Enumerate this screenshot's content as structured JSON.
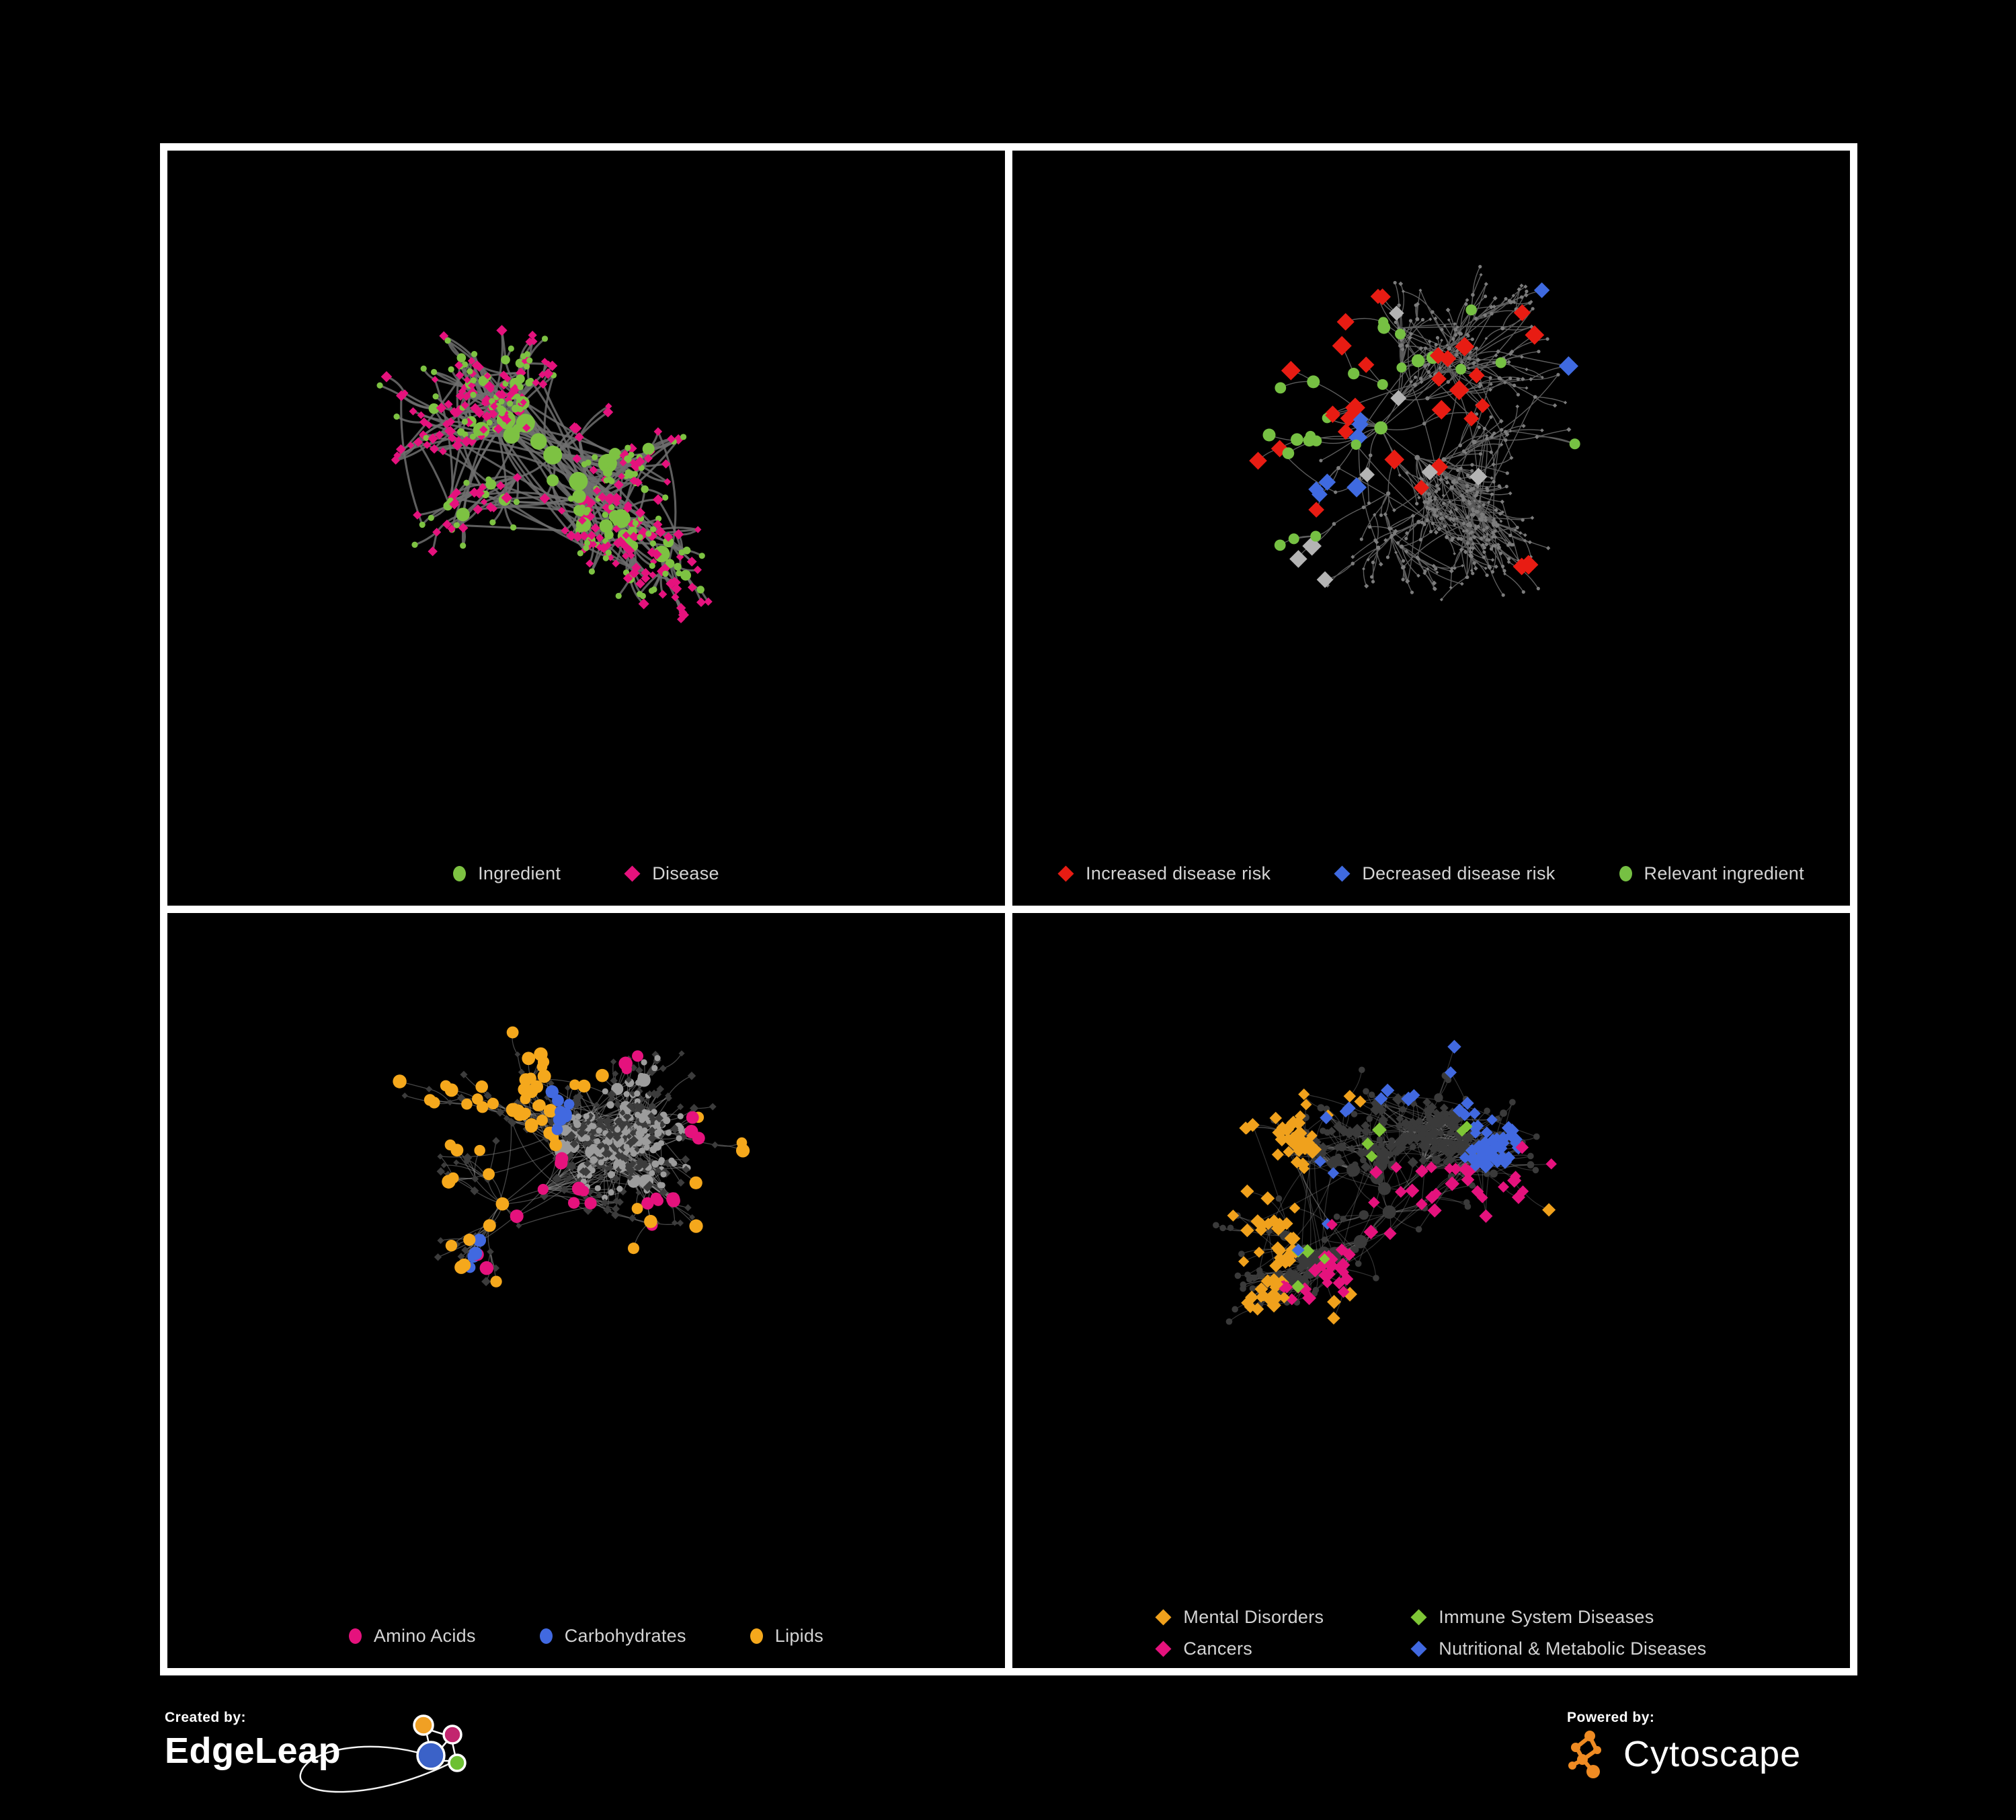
{
  "figure": {
    "background": "#000000",
    "frame_color": "#ffffff",
    "legend_text_color": "#d4d4d4"
  },
  "panels": [
    {
      "id": "ingredient-disease",
      "legend": {
        "columns": 1,
        "items": [
          {
            "label": "Ingredient",
            "color": "#7dc242",
            "shape": "circle"
          },
          {
            "label": "Disease",
            "color": "#e5127d",
            "shape": "diamond"
          }
        ]
      },
      "network": {
        "seed": 101,
        "nodes": 430,
        "root": [
          0.46,
          0.44
        ],
        "step": 33,
        "pref": 3,
        "circleFrac": 0.42,
        "web": 0.28,
        "webDist": 240,
        "edgeColor": "#6f6f6f",
        "edgeWidth": 3.1,
        "edgeOpacity": 0.85,
        "circleColor": "#7dc242",
        "circleR": 4.6,
        "hubGrow": 1.1,
        "circleMax": 14,
        "diamondColor": "#e5127d",
        "diamondS": 6.4,
        "highlights": []
      }
    },
    {
      "id": "disease-risk",
      "legend": {
        "columns": 1,
        "items": [
          {
            "label": "Increased disease risk",
            "color": "#e81c13",
            "shape": "diamond"
          },
          {
            "label": "Decreased disease risk",
            "color": "#3f6ae0",
            "shape": "diamond"
          },
          {
            "label": "Relevant ingredient",
            "color": "#76c043",
            "shape": "circle"
          }
        ]
      },
      "network": {
        "seed": 202,
        "nodes": 560,
        "root": [
          0.44,
          0.4
        ],
        "step": 36,
        "pref": 2,
        "circleFrac": 0.45,
        "web": 0.14,
        "webDist": 210,
        "edgeColor": "#5d5d5d",
        "edgeWidth": 1.4,
        "edgeOpacity": 1,
        "circleColor": "#7c7c7c",
        "circleR": 2.6,
        "hubGrow": 0.12,
        "circleMax": 4,
        "diamondColor": "#7c7c7c",
        "diamondS": 2.8,
        "highlights": [
          {
            "shape": "diamond",
            "color": "#e81c13",
            "count": 26,
            "size": 13,
            "centers": [
              [
                0.42,
                0.3
              ],
              [
                0.35,
                0.38
              ],
              [
                0.52,
                0.33
              ],
              [
                0.47,
                0.44
              ],
              [
                0.56,
                0.25
              ],
              [
                0.33,
                0.27
              ]
            ],
            "spread": 0.09
          },
          {
            "shape": "diamond",
            "color": "#e81c13",
            "count": 4,
            "size": 13,
            "centers": [
              [
                0.7,
                0.76
              ],
              [
                0.75,
                0.83
              ],
              [
                0.62,
                0.28
              ],
              [
                0.3,
                0.52
              ]
            ],
            "spread": 0.02
          },
          {
            "shape": "diamond",
            "color": "#3f6ae0",
            "count": 7,
            "size": 13,
            "centers": [
              [
                0.15,
                0.3
              ],
              [
                0.18,
                0.37
              ],
              [
                0.13,
                0.35
              ]
            ],
            "spread": 0.04
          },
          {
            "shape": "diamond",
            "color": "#3f6ae0",
            "count": 2,
            "size": 13,
            "centers": [
              [
                0.82,
                0.19
              ],
              [
                0.845,
                0.19
              ]
            ],
            "spread": 0.008
          },
          {
            "shape": "diamond",
            "color": "#b4b4b4",
            "count": 8,
            "size": 13,
            "centers": [
              [
                0.11,
                0.28
              ],
              [
                0.3,
                0.34
              ],
              [
                0.5,
                0.4
              ],
              [
                0.55,
                0.46
              ],
              [
                0.25,
                0.6
              ]
            ],
            "spread": 0.05
          },
          {
            "shape": "circle",
            "color": "#76c043",
            "count": 24,
            "size": 8.5,
            "centers": [
              [
                0.27,
                0.3
              ],
              [
                0.4,
                0.35
              ],
              [
                0.5,
                0.3
              ],
              [
                0.22,
                0.43
              ],
              [
                0.58,
                0.35
              ],
              [
                0.13,
                0.56
              ],
              [
                0.47,
                0.25
              ]
            ],
            "spread": 0.11
          },
          {
            "shape": "circle",
            "color": "#76c043",
            "count": 2,
            "size": 8.5,
            "centers": [
              [
                0.88,
                0.33
              ],
              [
                0.1,
                0.67
              ]
            ],
            "spread": 0.01
          }
        ]
      }
    },
    {
      "id": "nutrient-classes",
      "legend": {
        "columns": 1,
        "items": [
          {
            "label": "Amino Acids",
            "color": "#e5127d",
            "shape": "circle"
          },
          {
            "label": "Carbohydrates",
            "color": "#4169e0",
            "shape": "circle"
          },
          {
            "label": "Lipids",
            "color": "#f5a81c",
            "shape": "circle"
          }
        ]
      },
      "network": {
        "seed": 303,
        "nodes": 560,
        "root": [
          0.4,
          0.42
        ],
        "step": 34,
        "pref": 3,
        "circleFrac": 0.46,
        "web": 0.22,
        "webDist": 210,
        "edgeColor": "#9a9a9a",
        "edgeWidth": 1.3,
        "edgeOpacity": 0.45,
        "circleColor": "#9c9c9c",
        "circleR": 4.6,
        "hubGrow": 0.9,
        "circleMax": 13,
        "diamondColor": "#3c3c3c",
        "diamondS": 5.4,
        "highlights": [
          {
            "shape": "circle",
            "color": "#f5a81c",
            "count": 50,
            "size": 9,
            "centers": [
              [
                0.36,
                0.21
              ],
              [
                0.42,
                0.28
              ],
              [
                0.3,
                0.33
              ],
              [
                0.47,
                0.19
              ],
              [
                0.38,
                0.33
              ]
            ],
            "spread": 0.07
          },
          {
            "shape": "circle",
            "color": "#f5a81c",
            "count": 12,
            "size": 9,
            "centers": [
              [
                0.55,
                0.45
              ],
              [
                0.26,
                0.55
              ],
              [
                0.65,
                0.3
              ],
              [
                0.72,
                0.42
              ],
              [
                0.35,
                0.65
              ],
              [
                0.15,
                0.28
              ]
            ],
            "spread": 0.12
          },
          {
            "shape": "circle",
            "color": "#4169e0",
            "count": 11,
            "size": 9,
            "centers": [
              [
                0.38,
                0.19
              ],
              [
                0.42,
                0.26
              ],
              [
                0.35,
                0.26
              ]
            ],
            "spread": 0.05
          },
          {
            "shape": "circle",
            "color": "#4169e0",
            "count": 4,
            "size": 9,
            "centers": [
              [
                0.05,
                0.32
              ],
              [
                0.47,
                0.6
              ],
              [
                0.78,
                0.55
              ],
              [
                0.3,
                0.48
              ]
            ],
            "spread": 0.06
          },
          {
            "shape": "circle",
            "color": "#e5127d",
            "count": 22,
            "size": 9,
            "centers": [
              [
                0.1,
                0.45
              ],
              [
                0.24,
                0.72
              ],
              [
                0.46,
                0.76
              ],
              [
                0.6,
                0.6
              ],
              [
                0.73,
                0.34
              ],
              [
                0.46,
                0.04
              ],
              [
                0.86,
                0.3
              ],
              [
                0.22,
                0.32
              ],
              [
                0.4,
                0.6
              ],
              [
                0.6,
                0.78
              ]
            ],
            "spread": 0.1
          }
        ]
      }
    },
    {
      "id": "disease-categories",
      "legend": {
        "columns": 2,
        "items": [
          {
            "label": "Mental Disorders",
            "color": "#f0a11c",
            "shape": "diamond"
          },
          {
            "label": "Immune System Diseases",
            "color": "#7ec636",
            "shape": "diamond"
          },
          {
            "label": "Cancers",
            "color": "#e5127d",
            "shape": "diamond"
          },
          {
            "label": "Nutritional & Metabolic Diseases",
            "color": "#4169e0",
            "shape": "diamond"
          }
        ]
      },
      "network": {
        "seed": 404,
        "nodes": 560,
        "root": [
          0.45,
          0.44
        ],
        "step": 34,
        "pref": 3,
        "circleFrac": 0.4,
        "web": 0.22,
        "webDist": 210,
        "edgeColor": "#9a9a9a",
        "edgeWidth": 1.2,
        "edgeOpacity": 0.32,
        "circleColor": "#3a3a3a",
        "circleR": 4.8,
        "hubGrow": 0.6,
        "circleMax": 10,
        "diamondColor": "#3a3a3a",
        "diamondS": 7,
        "highlights": [
          {
            "shape": "diamond",
            "color": "#f0a11c",
            "count": 78,
            "size": 9.5,
            "centers": [
              [
                0.15,
                0.4
              ],
              [
                0.2,
                0.34
              ],
              [
                0.12,
                0.47
              ],
              [
                0.24,
                0.42
              ],
              [
                0.17,
                0.28
              ]
            ],
            "spread": 0.06
          },
          {
            "shape": "diamond",
            "color": "#f0a11c",
            "count": 10,
            "size": 9.5,
            "centers": [
              [
                0.35,
                0.13
              ],
              [
                0.3,
                0.6
              ],
              [
                0.08,
                0.75
              ],
              [
                0.42,
                0.9
              ],
              [
                0.68,
                0.85
              ]
            ],
            "spread": 0.08
          },
          {
            "shape": "diamond",
            "color": "#e5127d",
            "count": 48,
            "size": 9.5,
            "centers": [
              [
                0.45,
                0.48
              ],
              [
                0.52,
                0.42
              ],
              [
                0.41,
                0.55
              ],
              [
                0.48,
                0.58
              ],
              [
                0.55,
                0.5
              ]
            ],
            "spread": 0.06
          },
          {
            "shape": "diamond",
            "color": "#e5127d",
            "count": 9,
            "size": 9.5,
            "centers": [
              [
                0.9,
                0.2
              ],
              [
                0.92,
                0.25
              ],
              [
                0.6,
                0.75
              ],
              [
                0.3,
                0.8
              ],
              [
                0.25,
                0.18
              ]
            ],
            "spread": 0.03
          },
          {
            "shape": "diamond",
            "color": "#4169e0",
            "count": 62,
            "size": 9.5,
            "centers": [
              [
                0.6,
                0.44
              ],
              [
                0.68,
                0.3
              ],
              [
                0.78,
                0.35
              ],
              [
                0.72,
                0.55
              ],
              [
                0.3,
                0.07
              ],
              [
                0.45,
                0.1
              ],
              [
                0.85,
                0.14
              ],
              [
                0.65,
                0.1
              ],
              [
                0.56,
                0.52
              ],
              [
                0.75,
                0.7
              ],
              [
                0.82,
                0.45
              ],
              [
                0.38,
                0.4
              ]
            ],
            "spread": 0.08
          },
          {
            "shape": "diamond",
            "color": "#7ec636",
            "count": 9,
            "size": 9.5,
            "centers": [
              [
                0.42,
                0.34
              ],
              [
                0.5,
                0.55
              ],
              [
                0.36,
                0.45
              ],
              [
                0.55,
                0.3
              ],
              [
                0.45,
                0.86
              ],
              [
                0.38,
                0.68
              ]
            ],
            "spread": 0.03
          }
        ]
      }
    }
  ],
  "footer": {
    "created_by": {
      "label": "Created by:",
      "brand": "EdgeLeap",
      "logo_colors": {
        "orange": "#f0a024",
        "magenta": "#c2256e",
        "blue": "#3b62c8",
        "green": "#6dc033",
        "stroke": "#ffffff"
      }
    },
    "powered_by": {
      "label": "Powered by:",
      "brand": "Cytoscape",
      "logo_color": "#ef8b23"
    }
  }
}
